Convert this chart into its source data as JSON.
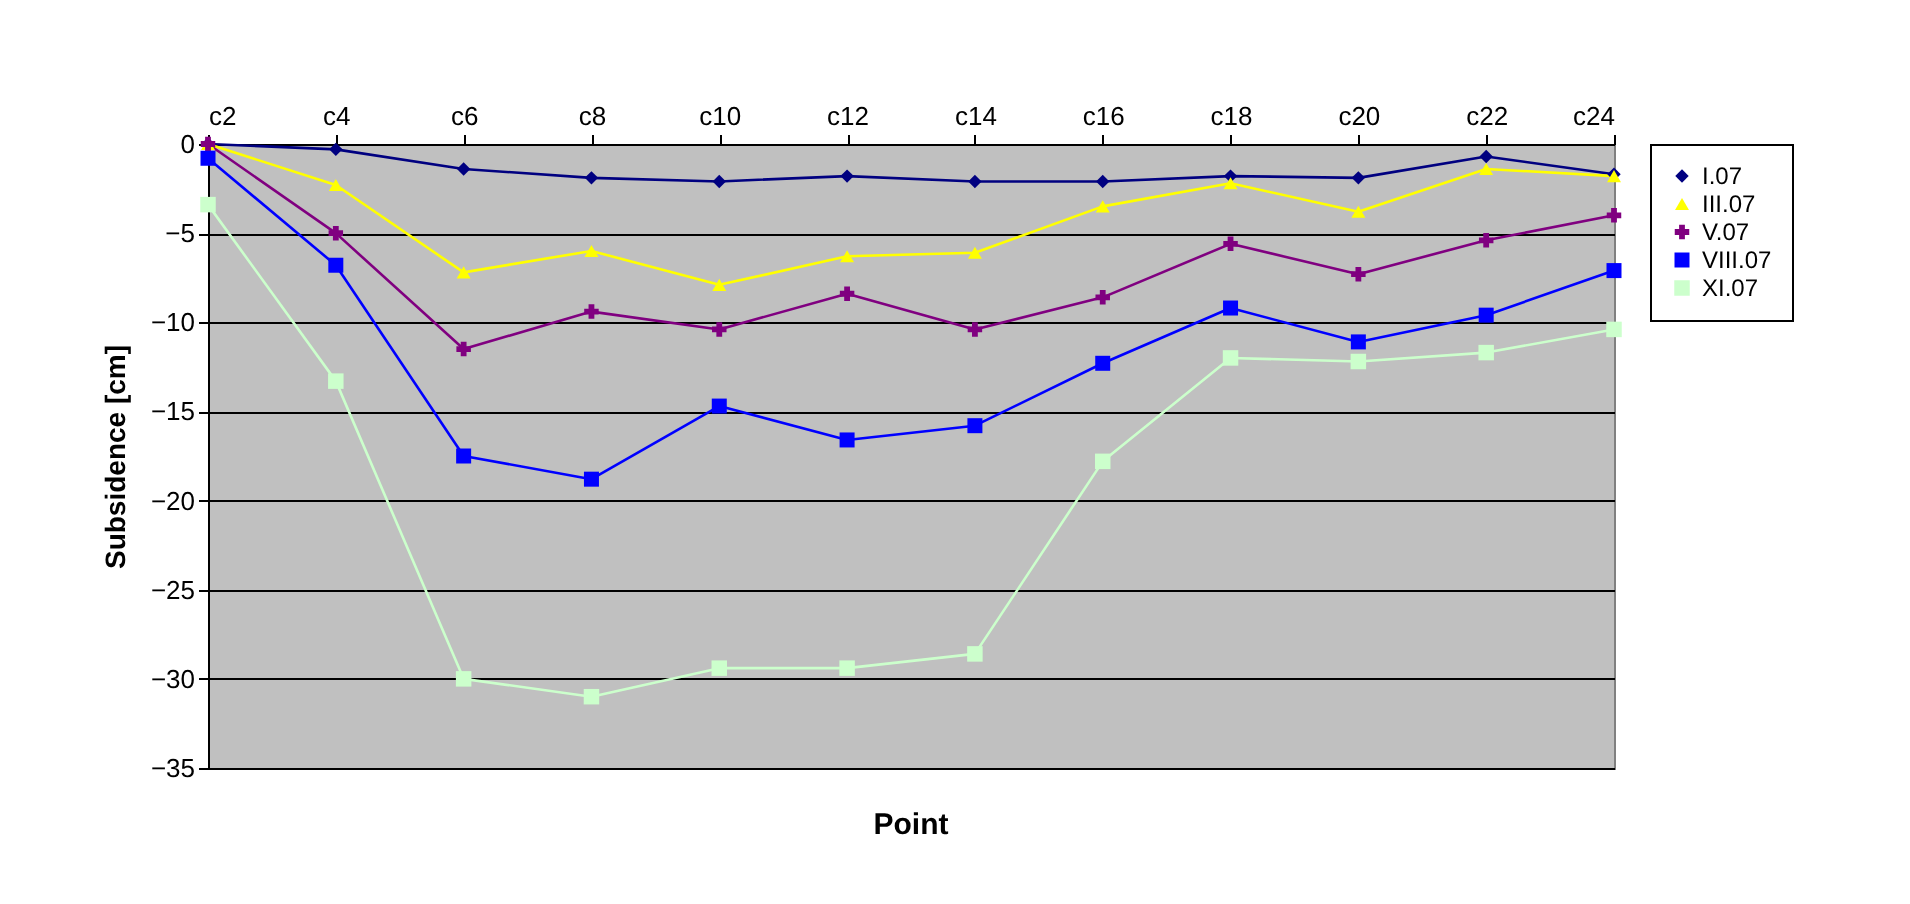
{
  "chart_data": {
    "type": "line",
    "xlabel": "Point",
    "ylabel": "Subsidence [cm]",
    "categories": [
      "c2",
      "c4",
      "c6",
      "c8",
      "c10",
      "c12",
      "c14",
      "c16",
      "c18",
      "c20",
      "c22",
      "c24"
    ],
    "ylim": [
      -35,
      0
    ],
    "yticks": [
      -35,
      -30,
      -25,
      -20,
      -15,
      -10,
      -5,
      0
    ],
    "grid": "y",
    "legend": "right",
    "series": [
      {
        "name": "I.07",
        "color": "#000080",
        "marker": "diamond",
        "values": [
          0,
          -0.3,
          -1.4,
          -1.9,
          -2.1,
          -1.8,
          -2.1,
          -2.1,
          -1.8,
          -1.9,
          -0.7,
          -1.7
        ]
      },
      {
        "name": "III.07",
        "color": "#ffff00",
        "marker": "triangle",
        "values": [
          0,
          -2.3,
          -7.2,
          -6.0,
          -7.9,
          -6.3,
          -6.1,
          -3.5,
          -2.2,
          -3.8,
          -1.4,
          -1.8
        ]
      },
      {
        "name": "V.07",
        "color": "#800080",
        "marker": "cross",
        "values": [
          0,
          -5.0,
          -11.5,
          -9.4,
          -10.4,
          -8.4,
          -10.4,
          -8.6,
          -5.6,
          -7.3,
          -5.4,
          -4.0
        ]
      },
      {
        "name": "VIII.07",
        "color": "#0000ff",
        "marker": "square",
        "values": [
          -0.8,
          -6.8,
          -17.5,
          -18.8,
          -14.7,
          -16.6,
          -15.8,
          -12.3,
          -9.2,
          -11.1,
          -9.6,
          -7.1
        ]
      },
      {
        "name": "XI.07",
        "color": "#ccffcc",
        "marker": "square",
        "values": [
          -3.4,
          -13.3,
          -30.0,
          -31.0,
          -29.4,
          -29.4,
          -28.6,
          -17.8,
          -12.0,
          -12.2,
          -11.7,
          -10.4
        ]
      }
    ]
  }
}
